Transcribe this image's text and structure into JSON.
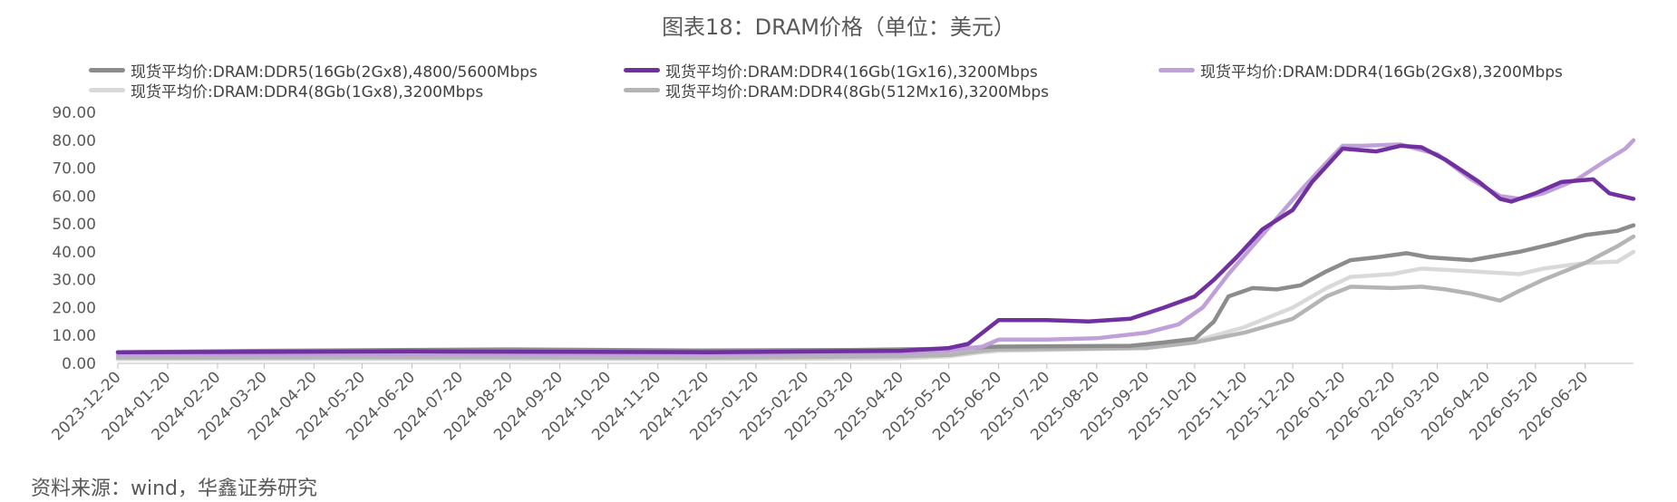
{
  "title": "图表18：DRAM价格（单位：美元）",
  "source": "资料来源：wind，华鑫证券研究",
  "chart_data": {
    "type": "line",
    "title": "图表18：DRAM价格（单位：美元）",
    "xlabel": "",
    "ylabel": "",
    "ylim": [
      0,
      90
    ],
    "yticks": [
      "0.00",
      "10.00",
      "20.00",
      "30.00",
      "40.00",
      "50.00",
      "60.00",
      "70.00",
      "80.00",
      "90.00"
    ],
    "x_ticks": [
      "2023-12-20",
      "2024-01-20",
      "2024-02-20",
      "2024-03-20",
      "2024-04-20",
      "2024-05-20",
      "2024-06-20",
      "2024-07-20",
      "2024-08-20",
      "2024-09-20",
      "2024-10-20",
      "2024-11-20",
      "2024-12-20",
      "2025-01-20",
      "2025-02-20",
      "2025-03-20",
      "2025-04-20",
      "2025-05-20",
      "2025-06-20",
      "2025-07-20",
      "2025-08-20",
      "2025-09-20",
      "2025-10-20",
      "2025-11-20",
      "2025-12-20",
      "2026-01-20",
      "2026-02-20",
      "2026-03-20",
      "2026-04-20",
      "2026-05-20",
      "2026-06-20"
    ],
    "x_range": [
      "2023-12-20",
      "2026-07-20"
    ],
    "grid": false,
    "legend_position": "top",
    "series": [
      {
        "name": "现货平均价:DRAM:DDR5(16Gb(2Gx8),4800/5600Mbps",
        "color": "#8c8c8c",
        "points": [
          [
            "2023-12-20",
            4.0
          ],
          [
            "2024-03-20",
            4.5
          ],
          [
            "2024-08-20",
            5.0
          ],
          [
            "2024-12-20",
            4.6
          ],
          [
            "2025-03-20",
            4.8
          ],
          [
            "2025-05-25",
            5.3
          ],
          [
            "2025-06-10",
            5.8
          ],
          [
            "2025-06-20",
            6.0
          ],
          [
            "2025-09-10",
            6.3
          ],
          [
            "2025-10-01",
            7.5
          ],
          [
            "2025-10-20",
            8.8
          ],
          [
            "2025-11-01",
            15.0
          ],
          [
            "2025-11-10",
            24.0
          ],
          [
            "2025-11-25",
            27.0
          ],
          [
            "2025-12-10",
            26.5
          ],
          [
            "2025-12-25",
            28.0
          ],
          [
            "2026-01-10",
            33.0
          ],
          [
            "2026-01-25",
            37.0
          ],
          [
            "2026-02-10",
            38.0
          ],
          [
            "2026-03-01",
            39.5
          ],
          [
            "2026-03-15",
            38.0
          ],
          [
            "2026-04-10",
            37.0
          ],
          [
            "2026-04-25",
            38.5
          ],
          [
            "2026-05-10",
            40.0
          ],
          [
            "2026-06-01",
            43.0
          ],
          [
            "2026-06-20",
            46.0
          ],
          [
            "2026-07-10",
            47.5
          ],
          [
            "2026-07-20",
            49.5
          ]
        ]
      },
      {
        "name": "现货平均价:DRAM:DDR4(16Gb(1Gx16),3200Mbps",
        "color": "#7030a0",
        "points": [
          [
            "2023-12-20",
            4.0
          ],
          [
            "2024-06-20",
            4.3
          ],
          [
            "2024-12-20",
            4.0
          ],
          [
            "2025-04-20",
            4.5
          ],
          [
            "2025-05-20",
            5.5
          ],
          [
            "2025-06-01",
            7.0
          ],
          [
            "2025-06-10",
            11.0
          ],
          [
            "2025-06-20",
            15.5
          ],
          [
            "2025-07-20",
            15.5
          ],
          [
            "2025-08-15",
            15.0
          ],
          [
            "2025-09-10",
            16.0
          ],
          [
            "2025-10-01",
            20.0
          ],
          [
            "2025-10-20",
            24.0
          ],
          [
            "2025-11-01",
            30.0
          ],
          [
            "2025-11-15",
            38.0
          ],
          [
            "2025-12-01",
            48.0
          ],
          [
            "2025-12-20",
            55.0
          ],
          [
            "2026-01-01",
            65.0
          ],
          [
            "2026-01-20",
            77.0
          ],
          [
            "2026-02-10",
            76.0
          ],
          [
            "2026-02-25",
            78.0
          ],
          [
            "2026-03-10",
            77.5
          ],
          [
            "2026-03-25",
            73.0
          ],
          [
            "2026-04-15",
            65.0
          ],
          [
            "2026-04-28",
            59.0
          ],
          [
            "2026-05-05",
            58.0
          ],
          [
            "2026-05-20",
            61.0
          ],
          [
            "2026-06-05",
            65.0
          ],
          [
            "2026-06-25",
            66.0
          ],
          [
            "2026-07-05",
            61.0
          ],
          [
            "2026-07-20",
            59.0
          ]
        ]
      },
      {
        "name": "现货平均价:DRAM:DDR4(16Gb(2Gx8),3200Mbps",
        "color": "#c0a0d8",
        "points": [
          [
            "2023-12-20",
            3.0
          ],
          [
            "2024-06-20",
            3.3
          ],
          [
            "2024-12-20",
            3.3
          ],
          [
            "2025-04-20",
            3.8
          ],
          [
            "2025-05-20",
            4.5
          ],
          [
            "2025-06-10",
            6.0
          ],
          [
            "2025-06-20",
            8.5
          ],
          [
            "2025-07-20",
            8.5
          ],
          [
            "2025-08-20",
            9.0
          ],
          [
            "2025-09-20",
            11.0
          ],
          [
            "2025-10-10",
            14.0
          ],
          [
            "2025-10-25",
            20.0
          ],
          [
            "2025-11-10",
            32.0
          ],
          [
            "2025-11-25",
            42.0
          ],
          [
            "2025-12-10",
            52.0
          ],
          [
            "2025-12-25",
            62.0
          ],
          [
            "2026-01-10",
            72.0
          ],
          [
            "2026-01-20",
            78.0
          ],
          [
            "2026-02-01",
            78.0
          ],
          [
            "2026-02-25",
            78.5
          ],
          [
            "2026-03-20",
            75.0
          ],
          [
            "2026-04-10",
            66.0
          ],
          [
            "2026-04-28",
            60.0
          ],
          [
            "2026-05-10",
            59.0
          ],
          [
            "2026-05-25",
            61.0
          ],
          [
            "2026-06-15",
            66.0
          ],
          [
            "2026-07-01",
            72.0
          ],
          [
            "2026-07-15",
            77.0
          ],
          [
            "2026-07-20",
            80.0
          ]
        ]
      },
      {
        "name": "现货平均价:DRAM:DDR4(8Gb(1Gx8),3200Mbps",
        "color": "#d9d9d9",
        "points": [
          [
            "2023-12-20",
            1.5
          ],
          [
            "2024-06-20",
            1.6
          ],
          [
            "2024-12-20",
            1.5
          ],
          [
            "2025-04-20",
            1.8
          ],
          [
            "2025-05-20",
            2.5
          ],
          [
            "2025-06-10",
            4.0
          ],
          [
            "2025-06-20",
            4.5
          ],
          [
            "2025-09-20",
            5.5
          ],
          [
            "2025-10-20",
            8.0
          ],
          [
            "2025-11-20",
            13.0
          ],
          [
            "2025-12-20",
            20.0
          ],
          [
            "2026-01-10",
            27.0
          ],
          [
            "2026-01-25",
            31.0
          ],
          [
            "2026-02-20",
            32.0
          ],
          [
            "2026-03-10",
            34.0
          ],
          [
            "2026-04-10",
            33.0
          ],
          [
            "2026-05-10",
            32.0
          ],
          [
            "2026-05-25",
            34.0
          ],
          [
            "2026-06-20",
            36.0
          ],
          [
            "2026-07-10",
            36.5
          ],
          [
            "2026-07-20",
            40.0
          ]
        ]
      },
      {
        "name": "现货平均价:DRAM:DDR4(8Gb(512Mx16),3200Mbps",
        "color": "#b4b4b4",
        "points": [
          [
            "2023-12-20",
            2.0
          ],
          [
            "2024-06-20",
            2.2
          ],
          [
            "2024-12-20",
            2.0
          ],
          [
            "2025-04-20",
            2.5
          ],
          [
            "2025-05-20",
            3.0
          ],
          [
            "2025-06-10",
            4.5
          ],
          [
            "2025-06-20",
            5.0
          ],
          [
            "2025-09-20",
            5.5
          ],
          [
            "2025-10-20",
            7.5
          ],
          [
            "2025-11-20",
            11.0
          ],
          [
            "2025-12-20",
            16.0
          ],
          [
            "2026-01-10",
            24.0
          ],
          [
            "2026-01-25",
            27.5
          ],
          [
            "2026-02-20",
            27.0
          ],
          [
            "2026-03-10",
            27.5
          ],
          [
            "2026-03-25",
            26.5
          ],
          [
            "2026-04-10",
            25.0
          ],
          [
            "2026-04-28",
            22.5
          ],
          [
            "2026-05-10",
            26.0
          ],
          [
            "2026-05-25",
            30.0
          ],
          [
            "2026-06-20",
            36.0
          ],
          [
            "2026-07-10",
            42.0
          ],
          [
            "2026-07-20",
            45.5
          ]
        ]
      }
    ]
  }
}
